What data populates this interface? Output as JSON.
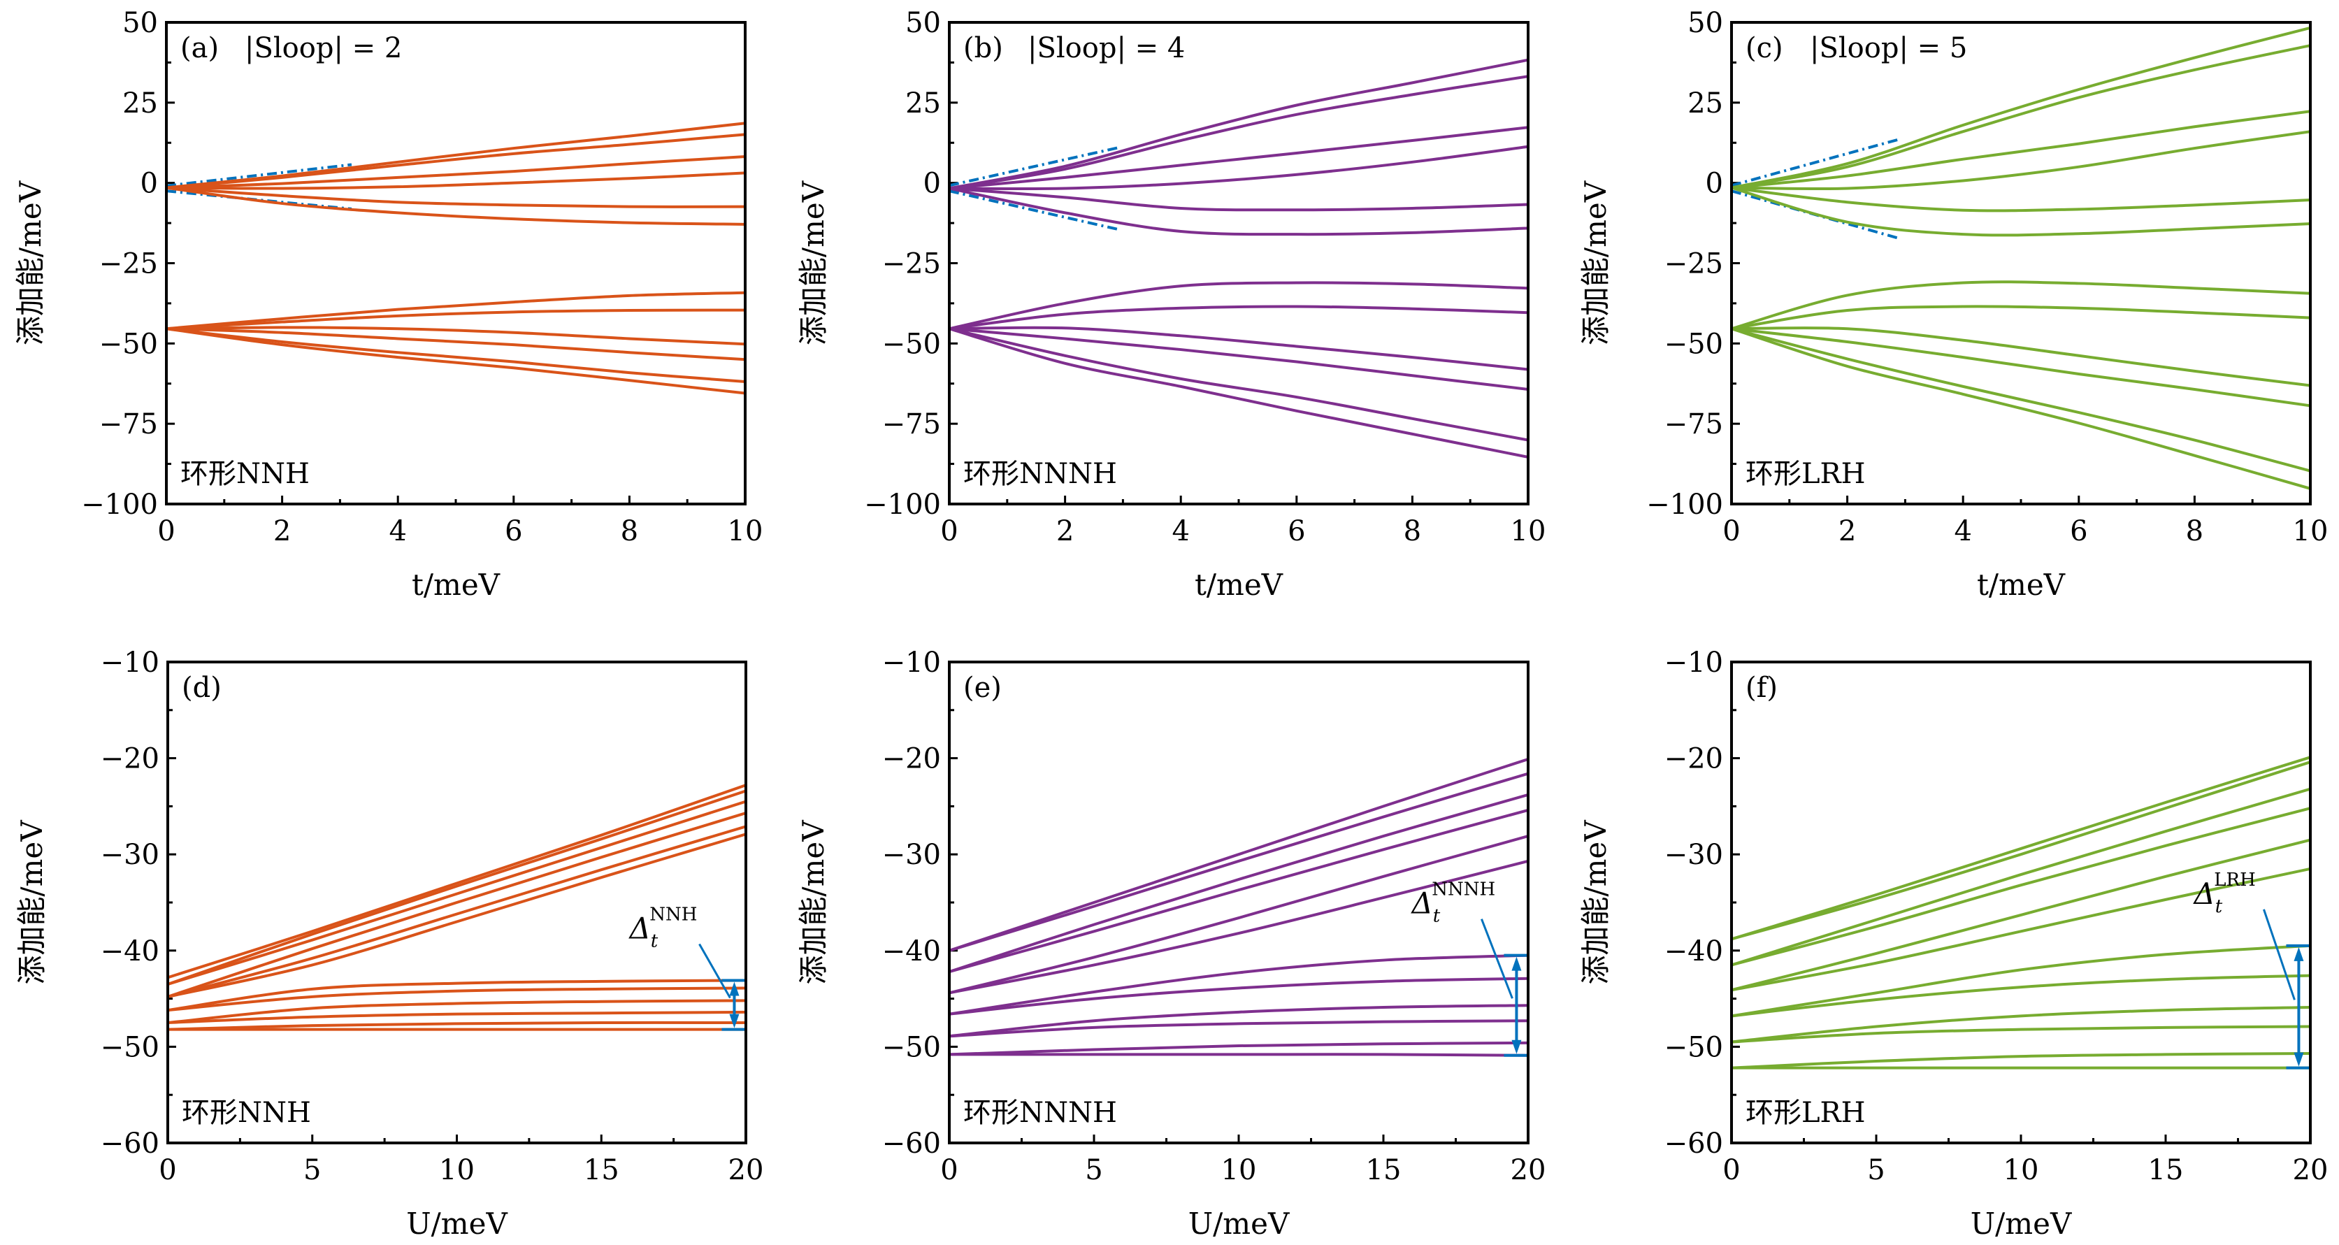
{
  "figure": {
    "colors": {
      "NNH": "#D95319",
      "NNNH": "#7E2F8E",
      "LRH": "#77AC30",
      "annotation": "#0072BD"
    }
  },
  "chart_data": [
    {
      "id": "a",
      "type": "line",
      "panel_label": "(a)",
      "title": "|Sloop| = 2",
      "note": "环形NNH",
      "model": "NNH",
      "xlabel": "t/meV",
      "ylabel": "添加能/meV",
      "xlim": [
        0,
        10
      ],
      "ylim": [
        -100,
        50
      ],
      "xticks": [
        0,
        2,
        4,
        6,
        8,
        10
      ],
      "yticks": [
        50,
        25,
        0,
        -25,
        -50,
        -75,
        -100
      ],
      "ytick_labels": [
        "50",
        "25",
        "0",
        "−25",
        "−50",
        "−75",
        "−100"
      ],
      "x": [
        0,
        2,
        4,
        6,
        8,
        10
      ],
      "series": [
        {
          "name": "upper-1",
          "values": [
            -1.5,
            2.2,
            6.5,
            10.8,
            14.6,
            18.6
          ]
        },
        {
          "name": "upper-2",
          "values": [
            -1.5,
            1.7,
            5.5,
            9.1,
            12.0,
            15.1
          ]
        },
        {
          "name": "upper-3",
          "values": [
            -1.5,
            -0.2,
            1.7,
            3.6,
            6.0,
            8.2
          ]
        },
        {
          "name": "upper-4",
          "values": [
            -1.5,
            -1.7,
            -1.2,
            0.0,
            1.4,
            3.1
          ]
        },
        {
          "name": "upper-5",
          "values": [
            -1.5,
            -4.0,
            -6.0,
            -6.9,
            -7.4,
            -7.4
          ]
        },
        {
          "name": "upper-6",
          "values": [
            -1.5,
            -6.4,
            -9.3,
            -11.2,
            -12.4,
            -12.9
          ]
        },
        {
          "name": "lower-1",
          "values": [
            -45.4,
            -42.3,
            -39.4,
            -37.1,
            -35.1,
            -34.2
          ]
        },
        {
          "name": "lower-2",
          "values": [
            -45.4,
            -43.3,
            -41.4,
            -40.2,
            -39.7,
            -39.6
          ]
        },
        {
          "name": "lower-3",
          "values": [
            -45.4,
            -45.0,
            -45.4,
            -46.6,
            -48.5,
            -50.2
          ]
        },
        {
          "name": "lower-4",
          "values": [
            -45.4,
            -46.6,
            -48.5,
            -50.4,
            -52.8,
            -55.0
          ]
        },
        {
          "name": "lower-5",
          "values": [
            -45.4,
            -49.5,
            -52.8,
            -55.7,
            -59.1,
            -61.9
          ]
        },
        {
          "name": "lower-6",
          "values": [
            -45.4,
            -50.4,
            -54.3,
            -57.6,
            -61.5,
            -65.5
          ]
        }
      ],
      "asymptotes": [
        {
          "name": "asymptote-upper",
          "x": [
            0,
            3.2
          ],
          "values": [
            -0.9,
            5.7
          ]
        },
        {
          "name": "asymptote-lower",
          "x": [
            0,
            3.2
          ],
          "values": [
            -2.5,
            -8.1
          ]
        }
      ]
    },
    {
      "id": "b",
      "type": "line",
      "panel_label": "(b)",
      "title": "|Sloop| = 4",
      "note": "环形NNNH",
      "model": "NNNH",
      "xlabel": "t/meV",
      "ylabel": "添加能/meV",
      "xlim": [
        0,
        10
      ],
      "ylim": [
        -100,
        50
      ],
      "xticks": [
        0,
        2,
        4,
        6,
        8,
        10
      ],
      "yticks": [
        50,
        25,
        0,
        -25,
        -50,
        -75,
        -100
      ],
      "ytick_labels": [
        "50",
        "25",
        "0",
        "−25",
        "−50",
        "−75",
        "−100"
      ],
      "x": [
        0,
        2,
        4,
        6,
        8,
        10
      ],
      "series": [
        {
          "name": "upper-1",
          "values": [
            -1.7,
            5.2,
            15.1,
            24.2,
            31.2,
            38.3
          ]
        },
        {
          "name": "upper-2",
          "values": [
            -1.7,
            4.3,
            13.2,
            21.3,
            27.5,
            33.2
          ]
        },
        {
          "name": "upper-3",
          "values": [
            -1.7,
            1.7,
            5.5,
            9.3,
            13.2,
            17.3
          ]
        },
        {
          "name": "upper-4",
          "values": [
            -1.7,
            -1.7,
            -0.2,
            2.6,
            6.5,
            11.3
          ]
        },
        {
          "name": "upper-5",
          "values": [
            -1.7,
            -4.5,
            -7.9,
            -8.4,
            -7.9,
            -6.7
          ]
        },
        {
          "name": "upper-6",
          "values": [
            -1.7,
            -9.3,
            -15.1,
            -16.0,
            -15.5,
            -14.1
          ]
        },
        {
          "name": "lower-1",
          "values": [
            -45.4,
            -37.5,
            -32.1,
            -31.1,
            -31.5,
            -32.8
          ]
        },
        {
          "name": "lower-2",
          "values": [
            -45.4,
            -40.9,
            -39.0,
            -38.5,
            -39.2,
            -40.4
          ]
        },
        {
          "name": "lower-3",
          "values": [
            -45.4,
            -45.2,
            -47.6,
            -50.9,
            -54.3,
            -58.1
          ]
        },
        {
          "name": "lower-4",
          "values": [
            -45.4,
            -48.5,
            -51.9,
            -55.7,
            -60.0,
            -64.3
          ]
        },
        {
          "name": "lower-5",
          "values": [
            -45.4,
            -53.8,
            -61.0,
            -66.7,
            -73.4,
            -80.1
          ]
        },
        {
          "name": "lower-6",
          "values": [
            -45.4,
            -56.2,
            -63.4,
            -71.0,
            -78.2,
            -85.4
          ]
        }
      ],
      "asymptotes": [
        {
          "name": "asymptote-upper",
          "x": [
            0,
            2.95
          ],
          "values": [
            -0.8,
            11.1
          ]
        },
        {
          "name": "asymptote-lower",
          "x": [
            0,
            2.95
          ],
          "values": [
            -2.5,
            -14.6
          ]
        }
      ]
    },
    {
      "id": "c",
      "type": "line",
      "panel_label": "(c)",
      "title": "|Sloop| = 5",
      "note": "环形LRH",
      "model": "LRH",
      "xlabel": "t/meV",
      "ylabel": "添加能/meV",
      "xlim": [
        0,
        10
      ],
      "ylim": [
        -100,
        50
      ],
      "xticks": [
        0,
        2,
        4,
        6,
        8,
        10
      ],
      "yticks": [
        50,
        25,
        0,
        -25,
        -50,
        -75,
        -100
      ],
      "ytick_labels": [
        "50",
        "25",
        "0",
        "−25",
        "−50",
        "−75",
        "−100"
      ],
      "x": [
        0,
        2,
        4,
        6,
        8,
        10
      ],
      "series": [
        {
          "name": "upper-1",
          "values": [
            -1.5,
            6.0,
            18.0,
            29.1,
            39.0,
            48.3
          ]
        },
        {
          "name": "upper-2",
          "values": [
            -1.5,
            5.0,
            16.0,
            26.6,
            35.2,
            42.8
          ]
        },
        {
          "name": "upper-3",
          "values": [
            -1.5,
            2.2,
            7.4,
            12.2,
            17.5,
            22.3
          ]
        },
        {
          "name": "upper-4",
          "values": [
            -1.5,
            -1.7,
            0.7,
            5.0,
            10.8,
            16.0
          ]
        },
        {
          "name": "upper-5",
          "values": [
            -1.5,
            -6.0,
            -8.5,
            -8.2,
            -6.9,
            -5.3
          ]
        },
        {
          "name": "upper-6",
          "values": [
            -1.5,
            -12.2,
            -16.0,
            -15.8,
            -14.3,
            -12.7
          ]
        },
        {
          "name": "lower-1",
          "values": [
            -45.4,
            -35.0,
            -31.1,
            -31.3,
            -32.8,
            -34.4
          ]
        },
        {
          "name": "lower-2",
          "values": [
            -45.4,
            -39.7,
            -38.5,
            -39.0,
            -40.4,
            -42.0
          ]
        },
        {
          "name": "lower-3",
          "values": [
            -45.4,
            -45.4,
            -49.0,
            -53.8,
            -58.6,
            -63.1
          ]
        },
        {
          "name": "lower-4",
          "values": [
            -45.4,
            -49.5,
            -54.3,
            -59.5,
            -64.3,
            -69.4
          ]
        },
        {
          "name": "lower-5",
          "values": [
            -45.4,
            -54.8,
            -63.4,
            -71.5,
            -80.1,
            -89.7
          ]
        },
        {
          "name": "lower-6",
          "values": [
            -45.4,
            -57.1,
            -65.8,
            -74.8,
            -84.9,
            -95.2
          ]
        }
      ],
      "asymptotes": [
        {
          "name": "asymptote-upper",
          "x": [
            0,
            2.9
          ],
          "values": [
            -0.8,
            13.6
          ]
        },
        {
          "name": "asymptote-lower",
          "x": [
            0,
            2.9
          ],
          "values": [
            -2.5,
            -17.3
          ]
        }
      ]
    },
    {
      "id": "d",
      "type": "line",
      "panel_label": "(d)",
      "title": "",
      "note": "环形NNH",
      "model": "NNH",
      "xlabel": "U/meV",
      "ylabel": "添加能/meV",
      "xlim": [
        0,
        20
      ],
      "ylim": [
        -60,
        -10
      ],
      "xticks": [
        0,
        5,
        10,
        15,
        20
      ],
      "yticks": [
        -10,
        -20,
        -30,
        -40,
        -50,
        -60
      ],
      "ytick_labels": [
        "−10",
        "−20",
        "−30",
        "−40",
        "−50",
        "−60"
      ],
      "x": [
        0,
        5,
        10,
        15,
        20
      ],
      "series": [
        {
          "name": "upper-1",
          "values": [
            -42.8,
            -38.0,
            -33.0,
            -28.0,
            -22.8
          ]
        },
        {
          "name": "upper-2",
          "values": [
            -43.5,
            -38.3,
            -33.3,
            -28.4,
            -23.4
          ]
        },
        {
          "name": "upper-3",
          "values": [
            -43.5,
            -38.9,
            -34.1,
            -29.3,
            -24.5
          ]
        },
        {
          "name": "upper-4",
          "values": [
            -44.8,
            -39.8,
            -35.0,
            -30.3,
            -25.7
          ]
        },
        {
          "name": "upper-5",
          "values": [
            -44.8,
            -40.8,
            -36.2,
            -31.6,
            -27.1
          ]
        },
        {
          "name": "upper-6",
          "values": [
            -44.8,
            -41.5,
            -37.0,
            -32.4,
            -27.9
          ]
        },
        {
          "name": "lower-1",
          "values": [
            -46.2,
            -44.0,
            -43.4,
            -43.2,
            -43.1
          ]
        },
        {
          "name": "lower-2",
          "values": [
            -46.2,
            -44.8,
            -44.2,
            -44.0,
            -43.9
          ]
        },
        {
          "name": "lower-3",
          "values": [
            -47.5,
            -46.0,
            -45.5,
            -45.3,
            -45.2
          ]
        },
        {
          "name": "lower-4",
          "values": [
            -47.5,
            -46.9,
            -46.6,
            -46.5,
            -46.4
          ]
        },
        {
          "name": "lower-5",
          "values": [
            -48.2,
            -47.8,
            -47.6,
            -47.5,
            -47.5
          ]
        },
        {
          "name": "lower-6",
          "values": [
            -48.2,
            -48.2,
            -48.2,
            -48.2,
            -48.2
          ]
        }
      ],
      "gap_annotation": {
        "label": "Δ",
        "subscript": "t",
        "superscript": "NNH",
        "x": 19.6,
        "top": -43.1,
        "bottom": -48.2
      }
    },
    {
      "id": "e",
      "type": "line",
      "panel_label": "(e)",
      "title": "",
      "note": "环形NNNH",
      "model": "NNNH",
      "xlabel": "U/meV",
      "ylabel": "添加能/meV",
      "xlim": [
        0,
        20
      ],
      "ylim": [
        -60,
        -10
      ],
      "xticks": [
        0,
        5,
        10,
        15,
        20
      ],
      "yticks": [
        -10,
        -20,
        -30,
        -40,
        -50,
        -60
      ],
      "ytick_labels": [
        "−10",
        "−20",
        "−30",
        "−40",
        "−50",
        "−60"
      ],
      "x": [
        0,
        5,
        10,
        15,
        20
      ],
      "series": [
        {
          "name": "upper-1",
          "values": [
            -40.0,
            -35.0,
            -30.0,
            -25.0,
            -20.1
          ]
        },
        {
          "name": "upper-2",
          "values": [
            -40.0,
            -35.4,
            -30.7,
            -26.1,
            -21.6
          ]
        },
        {
          "name": "upper-3",
          "values": [
            -42.2,
            -37.3,
            -32.6,
            -28.1,
            -23.8
          ]
        },
        {
          "name": "upper-4",
          "values": [
            -42.2,
            -38.0,
            -33.7,
            -29.5,
            -25.4
          ]
        },
        {
          "name": "upper-5",
          "values": [
            -44.4,
            -40.7,
            -36.6,
            -32.3,
            -28.1
          ]
        },
        {
          "name": "upper-6",
          "values": [
            -44.4,
            -41.5,
            -38.2,
            -34.5,
            -30.7
          ]
        },
        {
          "name": "lower-1",
          "values": [
            -46.6,
            -44.3,
            -42.3,
            -41.0,
            -40.5
          ]
        },
        {
          "name": "lower-2",
          "values": [
            -46.6,
            -45.0,
            -43.9,
            -43.2,
            -42.9
          ]
        },
        {
          "name": "lower-3",
          "values": [
            -48.9,
            -47.3,
            -46.4,
            -45.9,
            -45.7
          ]
        },
        {
          "name": "lower-4",
          "values": [
            -48.9,
            -48.0,
            -47.6,
            -47.4,
            -47.3
          ]
        },
        {
          "name": "lower-5",
          "values": [
            -50.8,
            -50.3,
            -49.9,
            -49.7,
            -49.6
          ]
        },
        {
          "name": "lower-6",
          "values": [
            -50.8,
            -50.8,
            -50.8,
            -50.8,
            -50.9
          ]
        }
      ],
      "gap_annotation": {
        "label": "Δ",
        "subscript": "t",
        "superscript": "NNNH",
        "x": 19.6,
        "top": -40.5,
        "bottom": -50.9
      }
    },
    {
      "id": "f",
      "type": "line",
      "panel_label": "(f)",
      "title": "",
      "note": "环形LRH",
      "model": "LRH",
      "xlabel": "U/meV",
      "ylabel": "添加能/meV",
      "xlim": [
        0,
        20
      ],
      "ylim": [
        -60,
        -10
      ],
      "xticks": [
        0,
        5,
        10,
        15,
        20
      ],
      "yticks": [
        -10,
        -20,
        -30,
        -40,
        -50,
        -60
      ],
      "ytick_labels": [
        "−10",
        "−20",
        "−30",
        "−40",
        "−50",
        "−60"
      ],
      "x": [
        0,
        5,
        10,
        15,
        20
      ],
      "series": [
        {
          "name": "upper-1",
          "values": [
            -38.8,
            -34.2,
            -29.4,
            -24.6,
            -19.9
          ]
        },
        {
          "name": "upper-2",
          "values": [
            -38.8,
            -34.6,
            -30.0,
            -25.2,
            -20.4
          ]
        },
        {
          "name": "upper-3",
          "values": [
            -41.5,
            -36.8,
            -32.1,
            -27.6,
            -23.2
          ]
        },
        {
          "name": "upper-4",
          "values": [
            -41.5,
            -37.5,
            -33.2,
            -29.1,
            -25.2
          ]
        },
        {
          "name": "upper-5",
          "values": [
            -44.1,
            -40.3,
            -36.3,
            -32.3,
            -28.5
          ]
        },
        {
          "name": "upper-6",
          "values": [
            -44.1,
            -41.3,
            -38.0,
            -34.7,
            -31.5
          ]
        },
        {
          "name": "lower-1",
          "values": [
            -46.8,
            -44.4,
            -42.0,
            -40.4,
            -39.5
          ]
        },
        {
          "name": "lower-2",
          "values": [
            -46.8,
            -45.1,
            -43.8,
            -43.0,
            -42.6
          ]
        },
        {
          "name": "lower-3",
          "values": [
            -49.5,
            -47.9,
            -46.8,
            -46.2,
            -45.9
          ]
        },
        {
          "name": "lower-4",
          "values": [
            -49.5,
            -48.6,
            -48.2,
            -48.0,
            -47.9
          ]
        },
        {
          "name": "lower-5",
          "values": [
            -52.2,
            -51.5,
            -51.0,
            -50.8,
            -50.7
          ]
        },
        {
          "name": "lower-6",
          "values": [
            -52.2,
            -52.2,
            -52.2,
            -52.2,
            -52.2
          ]
        }
      ],
      "gap_annotation": {
        "label": "Δ",
        "subscript": "t",
        "superscript": "LRH",
        "x": 19.6,
        "top": -39.5,
        "bottom": -52.2
      }
    }
  ]
}
